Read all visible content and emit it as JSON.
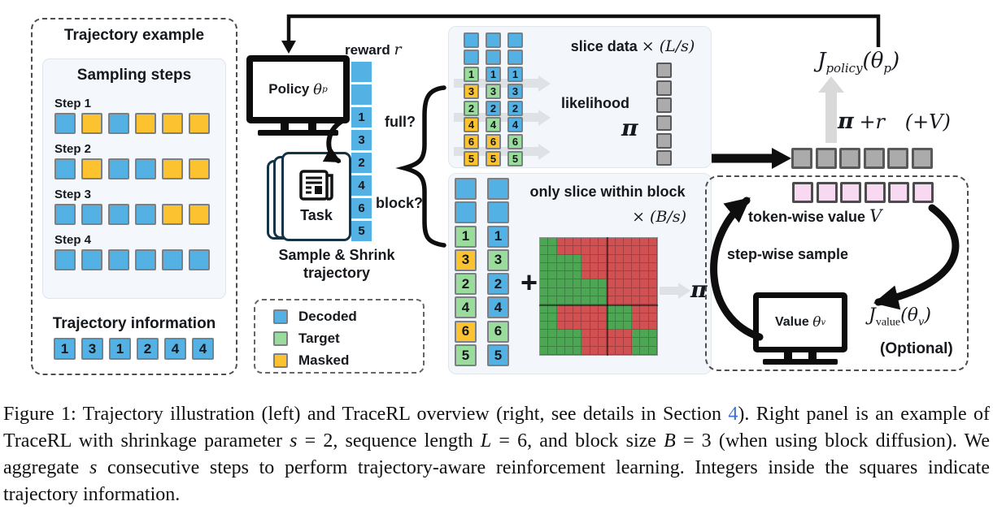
{
  "colors": {
    "decoded": "#54b1e3",
    "target": "#9adc9b",
    "masked": "#fcc230",
    "cell_border": "#7b8084",
    "score_fill": "#ababab",
    "score_border": "#595959",
    "value_fill": "#f7d9f1",
    "value_border": "#4c4c4c",
    "mask_attend": "#4da654",
    "mask_blocked": "#d15152",
    "link": "#4070d0"
  },
  "figure": {
    "left": {
      "title": "Trajectory example",
      "sampling_title": "Sampling steps",
      "steps": [
        {
          "label": "Step 1",
          "cells": [
            "d",
            "m",
            "d",
            "m",
            "m",
            "m"
          ]
        },
        {
          "label": "Step 2",
          "cells": [
            "d",
            "m",
            "d",
            "d",
            "m",
            "m"
          ]
        },
        {
          "label": "Step 3",
          "cells": [
            "d",
            "d",
            "d",
            "d",
            "m",
            "m"
          ]
        },
        {
          "label": "Step 4",
          "cells": [
            "d",
            "d",
            "d",
            "d",
            "d",
            "d"
          ]
        }
      ],
      "info_title": "Trajectory information",
      "info_values": [
        "1",
        "3",
        "1",
        "2",
        "4",
        "4"
      ]
    },
    "middle": {
      "policy_label": "Policy",
      "policy_theta": "θ",
      "policy_theta_sub": "p",
      "reward_label": "reward",
      "reward_math": "r",
      "reward_cells": [
        "",
        "",
        "1",
        "3",
        "2",
        "4",
        "6",
        "5"
      ],
      "full_label": "full?",
      "block_label": "block?",
      "task_label": "Task",
      "sample_shrink_line1": "Sample & Shrink",
      "sample_shrink_line2": "trajectory",
      "legend": {
        "items": [
          {
            "label": "Decoded",
            "c": "d"
          },
          {
            "label": "Target",
            "c": "t"
          },
          {
            "label": "Masked",
            "c": "m"
          }
        ]
      }
    },
    "slice_panel": {
      "heading": "slice data",
      "heading_math": "× (L/s)",
      "likelihood_label": "likelihood",
      "pi": "π",
      "output_cells": 6,
      "columns": [
        [
          {
            "c": "d"
          },
          {
            "c": "d"
          },
          {
            "n": "1",
            "c": "t"
          },
          {
            "n": "3",
            "c": "m"
          },
          {
            "n": "2",
            "c": "t"
          },
          {
            "n": "4",
            "c": "m"
          },
          {
            "n": "6",
            "c": "m"
          },
          {
            "n": "5",
            "c": "m"
          }
        ],
        [
          {
            "c": "d"
          },
          {
            "c": "d"
          },
          {
            "n": "1",
            "c": "d"
          },
          {
            "n": "3",
            "c": "t"
          },
          {
            "n": "2",
            "c": "d"
          },
          {
            "n": "4",
            "c": "t"
          },
          {
            "n": "6",
            "c": "m"
          },
          {
            "n": "5",
            "c": "m"
          }
        ],
        [
          {
            "c": "d"
          },
          {
            "c": "d"
          },
          {
            "n": "1",
            "c": "d"
          },
          {
            "n": "3",
            "c": "d"
          },
          {
            "n": "2",
            "c": "d"
          },
          {
            "n": "4",
            "c": "d"
          },
          {
            "n": "6",
            "c": "t"
          },
          {
            "n": "5",
            "c": "t"
          }
        ]
      ]
    },
    "block_panel": {
      "heading": "only slice within block",
      "heading_math": "× (B/s)",
      "plus": "+",
      "pi": "π",
      "columns": [
        [
          {
            "c": "d"
          },
          {
            "c": "d"
          },
          {
            "n": "1",
            "c": "t"
          },
          {
            "n": "3",
            "c": "m"
          },
          {
            "n": "2",
            "c": "t"
          },
          {
            "n": "4",
            "c": "t"
          },
          {
            "n": "6",
            "c": "m"
          },
          {
            "n": "5",
            "c": "t"
          }
        ],
        [
          {
            "c": "d"
          },
          {
            "c": "d"
          },
          {
            "n": "1",
            "c": "d"
          },
          {
            "n": "3",
            "c": "t"
          },
          {
            "n": "2",
            "c": "d"
          },
          {
            "n": "4",
            "c": "d"
          },
          {
            "n": "6",
            "c": "t"
          },
          {
            "n": "5",
            "c": "d"
          }
        ]
      ],
      "mask_rows": [
        "11000000000000",
        "11000000000000",
        "11111000000000",
        "11111000000000",
        "11111000000000",
        "11111111000000",
        "11111111000000",
        "11111111000000",
        "11000000111000",
        "11000000111000",
        "11000000111000",
        "11111000000111",
        "11111000000111",
        "11111000000111"
      ]
    },
    "right": {
      "policy_obj": {
        "j": "J",
        "sub": "policy",
        "arg_open": "(θ",
        "arg_sub": "p",
        "arg_close": ")"
      },
      "score_pi": "π",
      "score_plus_r": "+r",
      "score_plus_v": "(+V)",
      "score_cells": 6,
      "value_box": {
        "value_cells": 6,
        "token_value_label": "token-wise value",
        "token_value_math": "V",
        "step_sample_label": "step-wise sample",
        "value_label": "Value",
        "value_theta": "θ",
        "value_theta_sub": "v",
        "value_obj": {
          "j": "J",
          "sub": "value",
          "arg_open": "(θ",
          "arg_sub": "v",
          "arg_close": ")"
        },
        "optional": "(Optional)"
      }
    }
  },
  "caption": {
    "segments": [
      {
        "text": "Figure 1: Trajectory illustration (left) and TraceRL overview (right, see details in Section "
      },
      {
        "text": "4",
        "style": "link"
      },
      {
        "text": "). Right panel is an example of TraceRL with shrinkage parameter "
      },
      {
        "text": "s",
        "style": "math"
      },
      {
        "text": " = 2, sequence length "
      },
      {
        "text": "L",
        "style": "math"
      },
      {
        "text": " = 6, and block size "
      },
      {
        "text": "B",
        "style": "math"
      },
      {
        "text": " = 3 (when using block diffusion). We aggregate "
      },
      {
        "text": "s",
        "style": "math"
      },
      {
        "text": " consecutive steps to perform trajectory-aware reinforcement learning. Integers inside the squares indicate trajectory information."
      }
    ]
  }
}
